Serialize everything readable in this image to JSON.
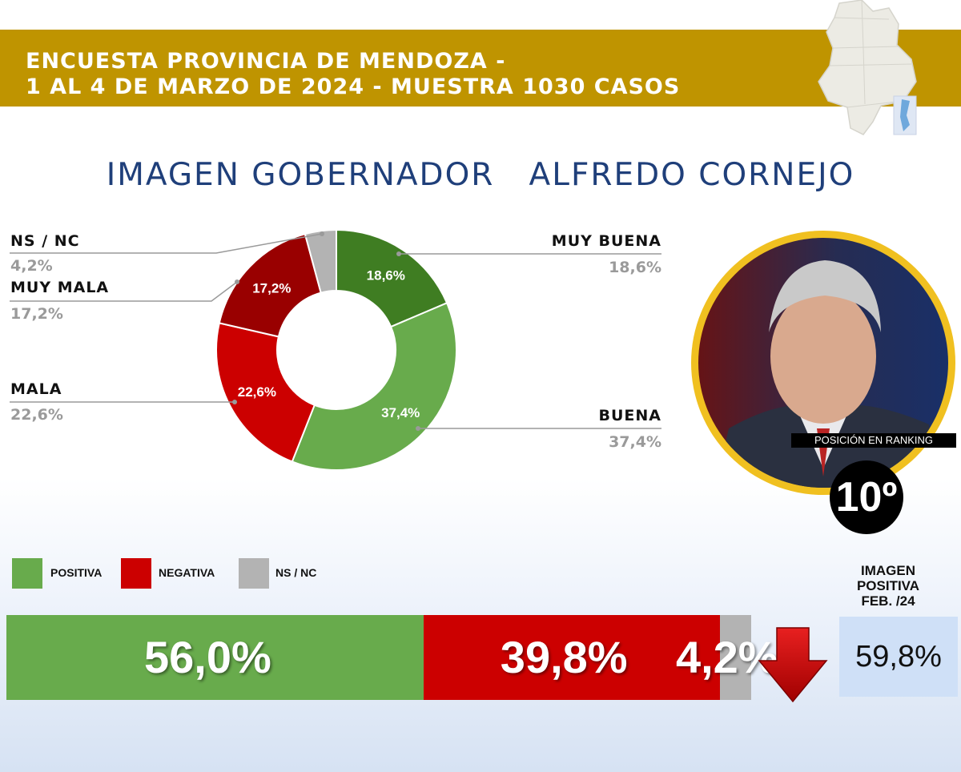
{
  "header": {
    "line1": "ENCUESTA PROVINCIA DE MENDOZA -",
    "line2": "1 AL 4 DE MARZO DE 2024 - MUESTRA 1030 CASOS"
  },
  "title": "IMAGEN GOBERNADOR   ALFREDO CORNEJO",
  "colors": {
    "banner": "#bf9400",
    "title": "#1f3f7a",
    "muy_buena": "#3f7d22",
    "buena": "#68ab4c",
    "mala": "#cc0000",
    "muy_mala": "#990000",
    "ns_nc": "#b3b3b3",
    "ring": "#f0c020"
  },
  "chart_data": [
    {
      "type": "pie",
      "subtype": "donut",
      "slices": [
        {
          "label": "MUY BUENA",
          "value": 18.6,
          "text": "18,6%",
          "color": "#3f7d22"
        },
        {
          "label": "BUENA",
          "value": 37.4,
          "text": "37,4%",
          "color": "#68ab4c"
        },
        {
          "label": "MALA",
          "value": 22.6,
          "text": "22,6%",
          "color": "#cc0000"
        },
        {
          "label": "MUY MALA",
          "value": 17.2,
          "text": "17,2%",
          "color": "#990000"
        },
        {
          "label": "NS / NC",
          "value": 4.2,
          "text": "4,2%",
          "color": "#b3b3b3"
        }
      ]
    },
    {
      "type": "bar",
      "orientation": "horizontal",
      "stacked": true,
      "series": [
        {
          "name": "POSITIVA",
          "value": 56.0,
          "text": "56,0%",
          "color": "#68ab4c"
        },
        {
          "name": "NEGATIVA",
          "value": 39.8,
          "text": "39,8%",
          "color": "#cc0000"
        },
        {
          "name": "NS / NC",
          "value": 4.2,
          "text": "4,2%",
          "color": "#b3b3b3"
        }
      ],
      "trend": "down"
    }
  ],
  "ranking": {
    "label": "POSICIÓN EN RANKING",
    "value": "10º"
  },
  "previous": {
    "title_line1": "IMAGEN",
    "title_line2": "POSITIVA",
    "title_line3": "FEB. /24",
    "value": "59,8%"
  }
}
